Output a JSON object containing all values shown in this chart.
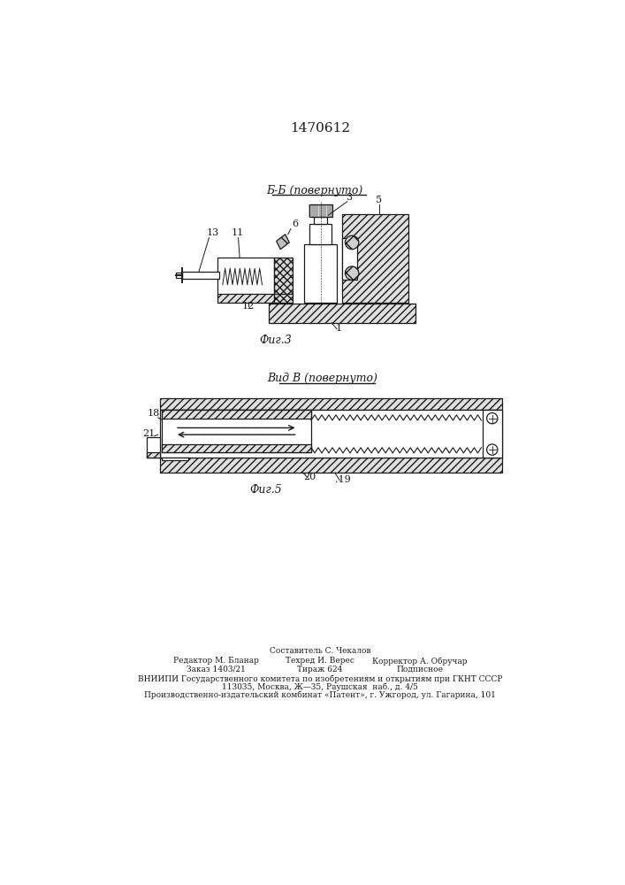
{
  "title": "1470612",
  "fig3_label": "Б-Б (повернуто)",
  "fig3_caption": "Фиг.3",
  "fig5_label": "Вид В (повернуто)",
  "fig5_caption": "Фиг.5",
  "bg_color": "#ffffff",
  "line_color": "#1a1a1a"
}
